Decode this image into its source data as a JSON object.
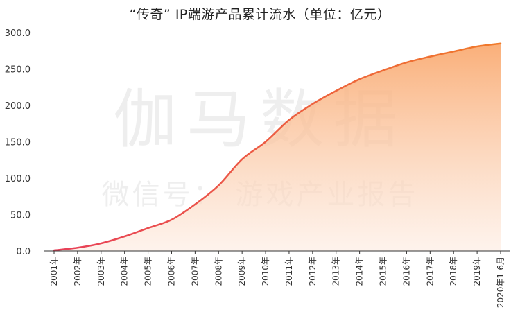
{
  "chart_data": {
    "type": "area",
    "title": "“传奇” IP端游产品累计流水（单位：亿元）",
    "watermark": {
      "main": "伽马数据",
      "sub": "微信号： 游戏产业报告"
    },
    "categories": [
      "2001年",
      "2002年",
      "2003年",
      "2004年",
      "2005年",
      "2006年",
      "2007年",
      "2008年",
      "2009年",
      "2010年",
      "2011年",
      "2012年",
      "2013年",
      "2014年",
      "2015年",
      "2016年",
      "2017年",
      "2018年",
      "2019年",
      "2020年1-6月"
    ],
    "values": [
      1.0,
      4.5,
      10.5,
      20.0,
      31.5,
      43.0,
      64.0,
      90.0,
      126.0,
      150.0,
      180.0,
      202.0,
      220.0,
      236.0,
      248.0,
      259.0,
      267.0,
      274.0,
      281.0,
      285.0
    ],
    "ylim": [
      0,
      300
    ],
    "yticks": [
      "0.0",
      "50.0",
      "100.0",
      "150.0",
      "200.0",
      "250.0",
      "300.0"
    ],
    "grid": false,
    "legend": "none",
    "colors": {
      "line_start": "#e84059",
      "line_end": "#f07a2a",
      "fill_top": "#f9a66a",
      "fill_bottom": "#fdebe0"
    }
  }
}
